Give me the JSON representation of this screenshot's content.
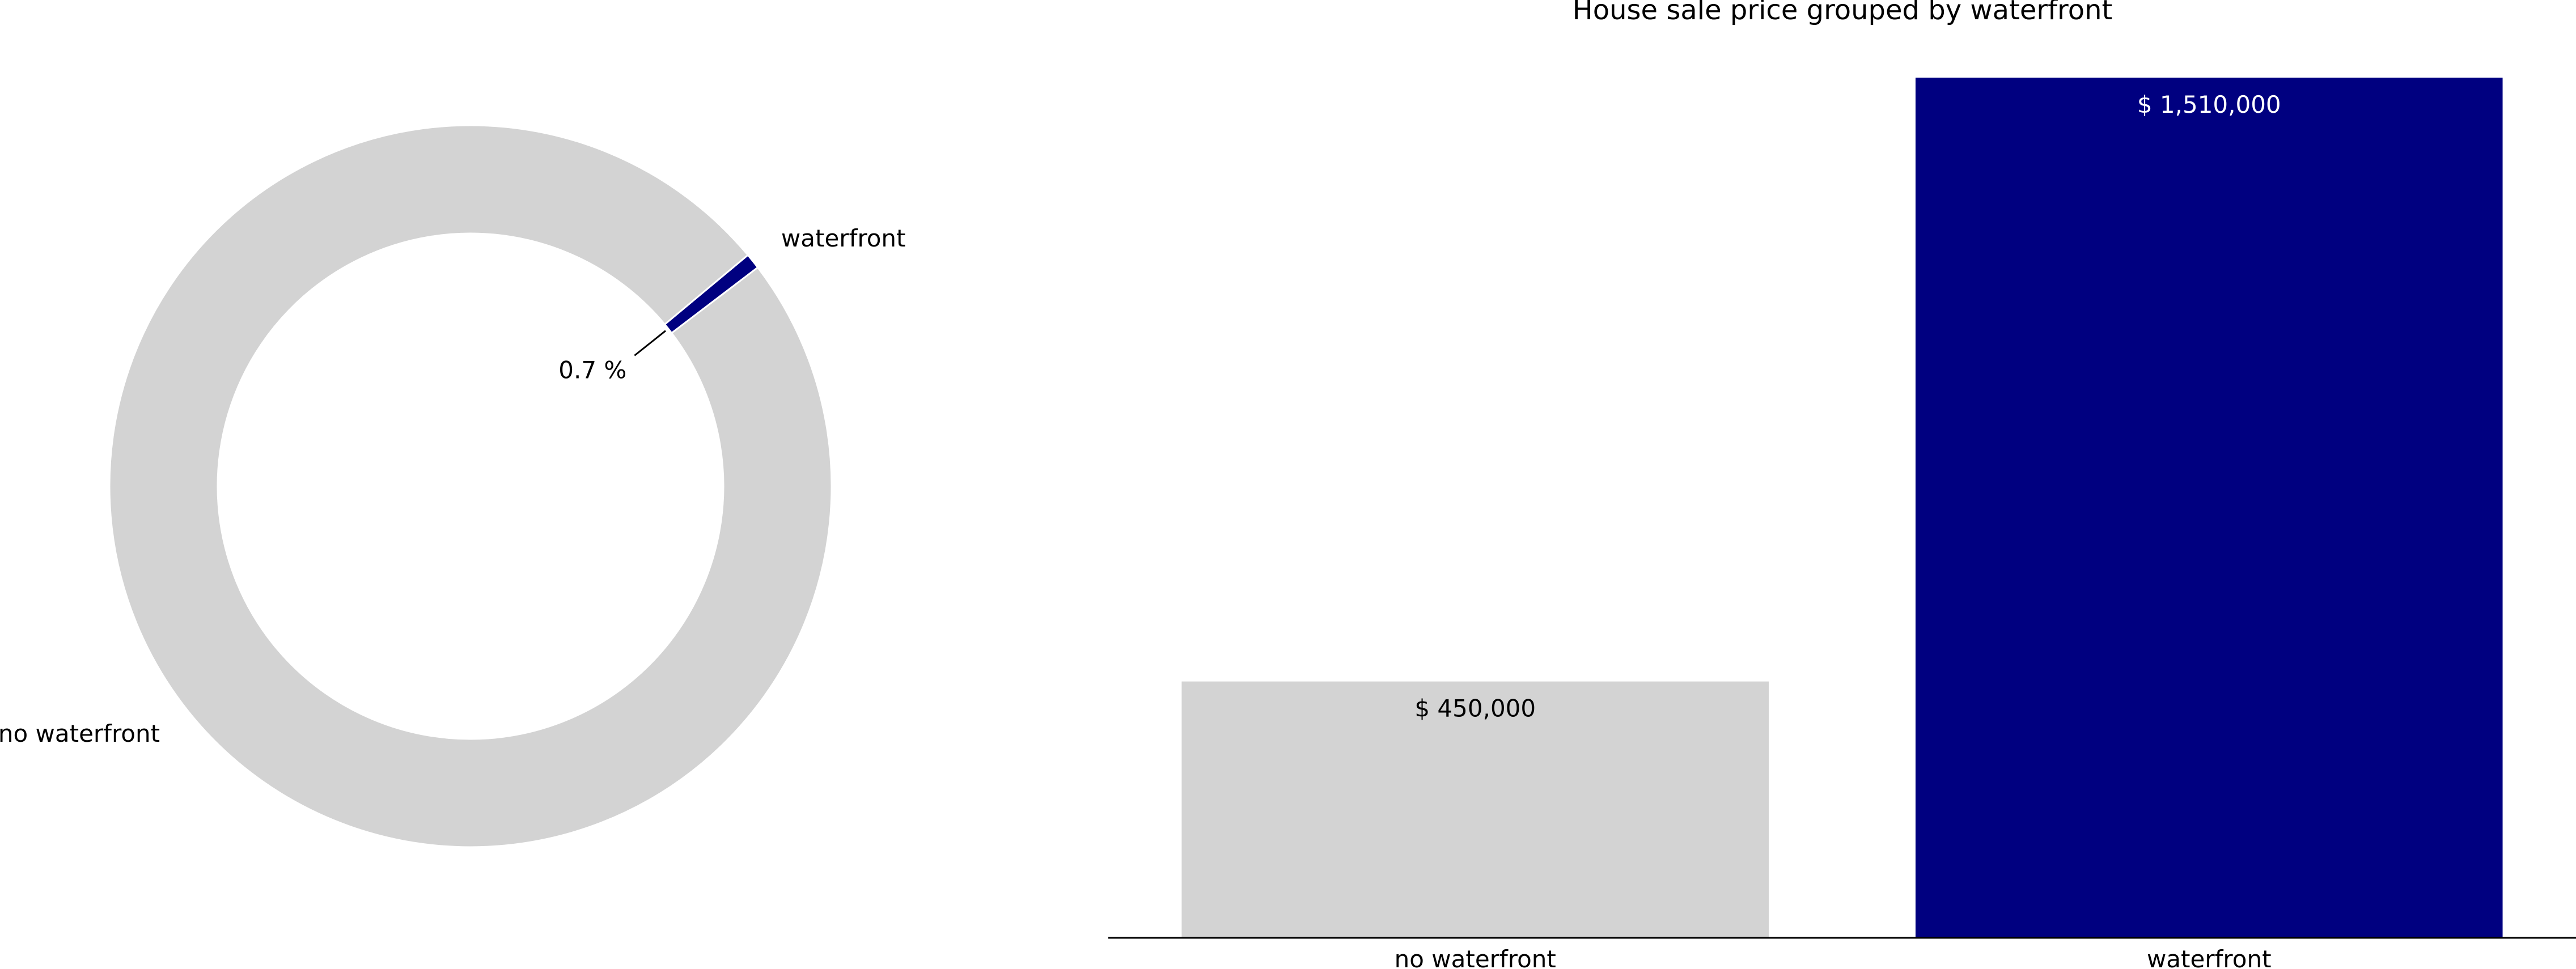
{
  "colors": {
    "muted": "#d3d3d3",
    "highlight": "#000080",
    "axis": "#000000",
    "text": "#000000",
    "bar_label_on_dark": "#ffffff"
  },
  "chart_data": [
    {
      "type": "pie",
      "style": "donut",
      "slices": [
        {
          "label": "waterfront",
          "value": 0.7,
          "color": "#000080"
        },
        {
          "label": "no waterfront",
          "value": 99.3,
          "color": "#d3d3d3"
        }
      ],
      "annotation": "0.7 %"
    },
    {
      "type": "bar",
      "title": "House sale price grouped by waterfront",
      "categories": [
        "no waterfront",
        "waterfront"
      ],
      "values": [
        450000,
        1510000
      ],
      "value_labels": [
        "$ 450,000",
        "$ 1,510,000"
      ],
      "colors": [
        "#d3d3d3",
        "#000080"
      ],
      "ylim": [
        0,
        1510000
      ],
      "grid": false,
      "xlabel": "",
      "ylabel": ""
    }
  ]
}
